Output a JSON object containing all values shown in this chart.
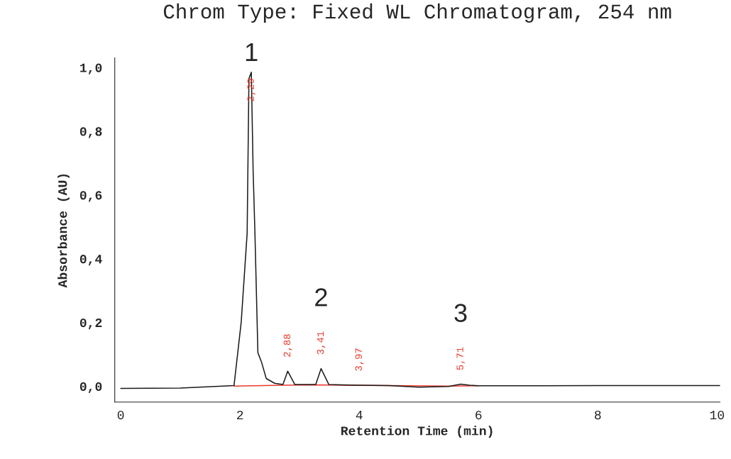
{
  "chart_data": {
    "type": "line",
    "title": "Chrom Type: Fixed WL Chromatogram, 254 nm",
    "xlabel": "Retention Time (min)",
    "ylabel": "Absorbance (AU)",
    "xlim": [
      -0.1,
      10.05
    ],
    "ylim": [
      -0.05,
      1.03
    ],
    "xticks": [
      0,
      2,
      4,
      6,
      8,
      10
    ],
    "yticks": [
      {
        "value": 0,
        "label": "0,0"
      },
      {
        "value": 0.2,
        "label": "0,2"
      },
      {
        "value": 0.4,
        "label": "0,4"
      },
      {
        "value": 0.6,
        "label": "0,6"
      },
      {
        "value": 0.8,
        "label": "0,8"
      },
      {
        "value": 1,
        "label": "1,0"
      }
    ],
    "grid": false,
    "legend": false,
    "marker": "none",
    "line_style": "solid",
    "series": [
      {
        "color": "#1a1a1a",
        "x": [
          0,
          1.0,
          1.9,
          2.02,
          2.12,
          2.15,
          2.19,
          2.22,
          2.25,
          2.3,
          2.36,
          2.44,
          2.58,
          2.72,
          2.8,
          2.92,
          3.27,
          3.36,
          3.49,
          3.7,
          4.0,
          4.5,
          5.0,
          5.5,
          5.7,
          5.85,
          6.0,
          7.0,
          8.0,
          9.0,
          10.05
        ],
        "values": [
          -0.007,
          -0.006,
          0.002,
          0.2,
          0.48,
          0.965,
          0.985,
          0.677,
          0.484,
          0.105,
          0.076,
          0.024,
          0.009,
          0.005,
          0.047,
          0.005,
          0.005,
          0.055,
          0.005,
          0.004,
          0.003,
          0.002,
          -0.003,
          -0.001,
          0.006,
          0.003,
          0.001,
          0.001,
          0.002,
          0.002,
          0.002
        ]
      },
      {
        "color": "#e83a2e",
        "x": [
          1.9,
          2.72,
          3.27,
          3.7,
          4.5,
          5.5,
          6.0
        ],
        "values": [
          0.0,
          0.003,
          0.004,
          0.003,
          0.002,
          0.0,
          0.001
        ]
      }
    ],
    "annotations": [
      {
        "text": "1",
        "x": 2.19,
        "y": 0.985
      },
      {
        "text": "2",
        "x": 3.36,
        "y": 0.055
      },
      {
        "text": "3",
        "x": 5.7,
        "y": 0.006
      },
      {
        "text": "2,29",
        "x": 2.19,
        "y": 0.985
      },
      {
        "text": "2,88",
        "x": 2.8,
        "y": 0.047
      },
      {
        "text": "3,41",
        "x": 3.36,
        "y": 0.055
      },
      {
        "text": "3,97",
        "x": 4.0,
        "y": 0.003
      },
      {
        "text": "5,71",
        "x": 5.7,
        "y": 0.006
      }
    ]
  }
}
